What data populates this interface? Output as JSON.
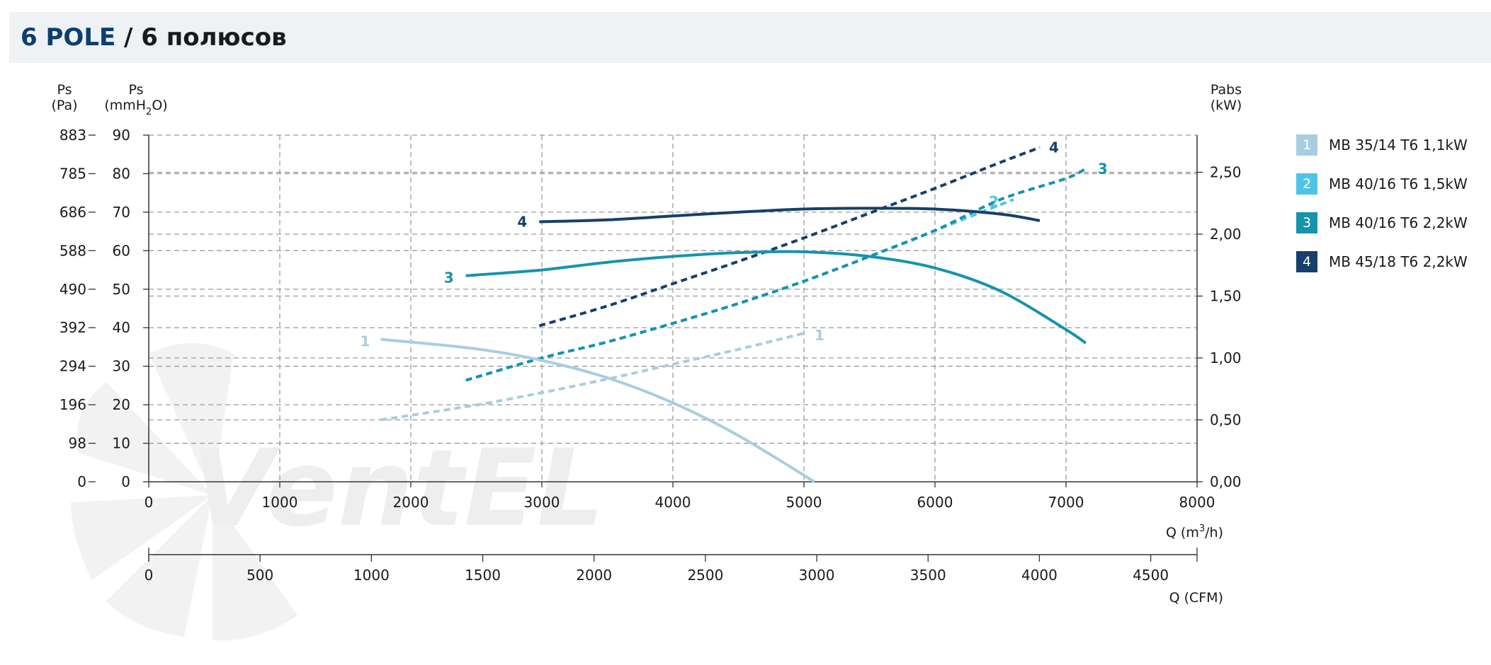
{
  "header": {
    "title_main": "6 POLE",
    "title_rest": " / 6 полюсов"
  },
  "watermark": "VentEL",
  "chart_data": {
    "type": "line",
    "x_axis": {
      "label": "Q (m³/h)",
      "label_base": "Q (m",
      "label_sup": "3",
      "label_tail": "/h)",
      "range": [
        0,
        8000
      ],
      "ticks": [
        "0",
        "1000",
        "2000",
        "3000",
        "4000",
        "5000",
        "6000",
        "7000",
        "8000"
      ]
    },
    "x2_axis": {
      "label": "Q (CFM)",
      "range": [
        0,
        4708
      ],
      "ticks": [
        "0",
        "500",
        "1000",
        "1500",
        "2000",
        "2500",
        "3000",
        "3500",
        "4000",
        "4500"
      ]
    },
    "y_axis_mmh2o": {
      "label_top": "Ps",
      "label_bottom": "(mmH₂O)",
      "label_bottom_base": "(mmH",
      "label_bottom_sub": "2",
      "label_bottom_tail": "O)",
      "range": [
        0,
        90
      ],
      "ticks": [
        "0",
        "10",
        "20",
        "30",
        "40",
        "50",
        "60",
        "70",
        "80",
        "90"
      ]
    },
    "y_axis_pa": {
      "label_top": "Ps",
      "label_bottom": "(Pa)",
      "ticks": [
        "0",
        "98",
        "196",
        "294",
        "392",
        "490",
        "588",
        "686",
        "785",
        "883"
      ]
    },
    "y_axis_power": {
      "label_top": "Pabs",
      "label_bottom": "(kW)",
      "range": [
        0,
        2.8
      ],
      "ticks": [
        "0,00",
        "0,50",
        "1,00",
        "1,50",
        "2,00",
        "2,50"
      ]
    },
    "grid": true,
    "legend_position": "right",
    "series": [
      {
        "id": "1",
        "name": "MB 35/14 T6 1,1kW",
        "color": "#a9cde0",
        "pressure": {
          "x": [
            1770,
            2500,
            3000,
            3500,
            4000,
            4500,
            5080
          ],
          "y": [
            37,
            34.5,
            31.5,
            27,
            20.5,
            12,
            0
          ]
        },
        "power": {
          "x": [
            1770,
            2500,
            3000,
            3500,
            4000,
            4500,
            5000
          ],
          "y": [
            0.5,
            0.62,
            0.72,
            0.83,
            0.95,
            1.07,
            1.2
          ]
        }
      },
      {
        "id": "2",
        "name": "MB 40/16 T6 1,5kW",
        "color": "#4fc3e8",
        "pressure": {
          "x": [],
          "y": []
        },
        "power": {
          "x": [
            2420,
            3000,
            3500,
            4000,
            4500,
            5000,
            5500,
            6000,
            6600
          ],
          "y": [
            0.82,
            1.0,
            1.13,
            1.28,
            1.44,
            1.62,
            1.82,
            2.03,
            2.28
          ]
        }
      },
      {
        "id": "3",
        "name": "MB 40/16 T6 2,2kW",
        "color": "#1693ad",
        "pressure": {
          "x": [
            2420,
            3000,
            3500,
            4000,
            4500,
            5000,
            5500,
            6000,
            6500,
            7000,
            7150
          ],
          "y": [
            53.5,
            55,
            57,
            58.5,
            59.5,
            59.7,
            58.5,
            55.5,
            49.5,
            39.5,
            36
          ]
        },
        "power": {
          "x": [
            2420,
            3000,
            3500,
            4000,
            4500,
            5000,
            5500,
            6000,
            6500,
            7000,
            7150
          ],
          "y": [
            0.82,
            1.0,
            1.13,
            1.28,
            1.44,
            1.62,
            1.82,
            2.03,
            2.28,
            2.45,
            2.53
          ]
        }
      },
      {
        "id": "4",
        "name": "MB 45/18 T6 2,2kW",
        "color": "#163f6b",
        "pressure": {
          "x": [
            2980,
            3500,
            4000,
            4500,
            5000,
            5500,
            6000,
            6500,
            6800
          ],
          "y": [
            67.5,
            68,
            69,
            70,
            70.8,
            71,
            70.8,
            69.5,
            67.8
          ]
        },
        "power": {
          "x": [
            2980,
            3500,
            4000,
            4500,
            5000,
            5500,
            6000,
            6500,
            6800
          ],
          "y": [
            1.26,
            1.42,
            1.6,
            1.78,
            1.97,
            2.17,
            2.37,
            2.58,
            2.7
          ]
        }
      }
    ]
  }
}
